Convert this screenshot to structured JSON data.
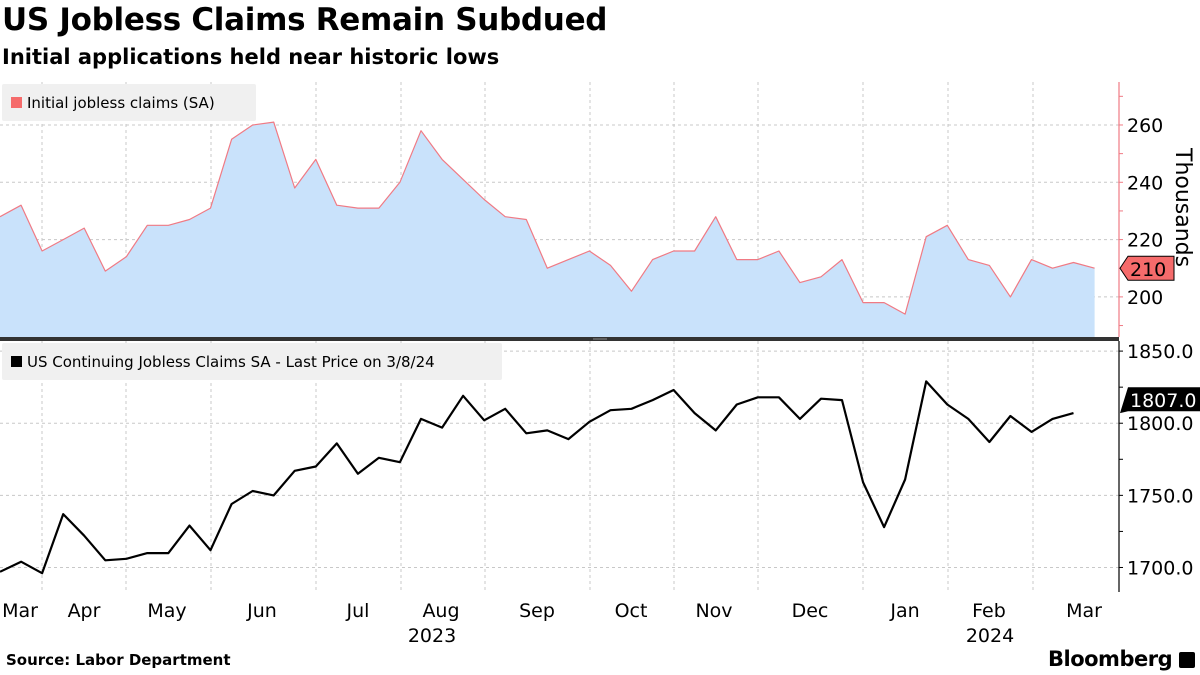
{
  "title": "US Jobless Claims Remain Subdued",
  "subtitle": "Initial applications held near historic lows",
  "source": "Source: Labor Department",
  "brand": "Bloomberg",
  "chart_data": [
    {
      "type": "area",
      "legend": "Initial jobless claims (SA)",
      "ylabel": "Thousands",
      "ylim": [
        186,
        275
      ],
      "yticks": [
        "200",
        "220",
        "240",
        "260"
      ],
      "ytick_values": [
        200,
        220,
        240,
        260
      ],
      "last_value_label": "210",
      "colors": {
        "line": "#f07a84",
        "fill": "#c9e2fb",
        "tag": "#f56b6b"
      },
      "grid": true,
      "values": [
        228,
        232,
        216,
        220,
        224,
        209,
        214,
        225,
        225,
        227,
        231,
        255,
        260,
        261,
        238,
        248,
        232,
        231,
        231,
        240,
        258,
        248,
        241,
        234,
        228,
        227,
        210,
        213,
        216,
        211,
        202,
        213,
        216,
        216,
        228,
        213,
        213,
        216,
        205,
        207,
        213,
        198,
        198,
        194,
        221,
        225,
        213,
        211,
        200,
        213,
        210,
        212,
        210
      ]
    },
    {
      "type": "line",
      "legend": "US Continuing Jobless Claims SA - Last Price on 3/8/24",
      "ylim": [
        1683,
        1857
      ],
      "yticks": [
        "1700.0",
        "1750.0",
        "1800.0",
        "1850.0"
      ],
      "ytick_values": [
        1700,
        1750,
        1800,
        1850
      ],
      "last_value_label": "1807.0",
      "colors": {
        "line": "#000000",
        "tag": "#000000"
      },
      "grid": true,
      "values": [
        1697,
        1704,
        1696,
        1737,
        1722,
        1705,
        1706,
        1710,
        1710,
        1729,
        1712,
        1744,
        1753,
        1750,
        1767,
        1770,
        1786,
        1765,
        1776,
        1773,
        1803,
        1797,
        1819,
        1802,
        1810,
        1793,
        1795,
        1789,
        1801,
        1809,
        1810,
        1816,
        1823,
        1807,
        1795,
        1813,
        1818,
        1818,
        1803,
        1817,
        1816,
        1759,
        1728,
        1761,
        1829,
        1813,
        1803,
        1787,
        1805,
        1794,
        1803,
        1807
      ]
    }
  ],
  "x_axis": {
    "months": [
      "Mar",
      "Apr",
      "May",
      "Jun",
      "Jul",
      "Aug",
      "Sep",
      "Oct",
      "Nov",
      "Dec",
      "Jan",
      "Feb",
      "Mar"
    ],
    "years": [
      "2023",
      "2024"
    ]
  }
}
